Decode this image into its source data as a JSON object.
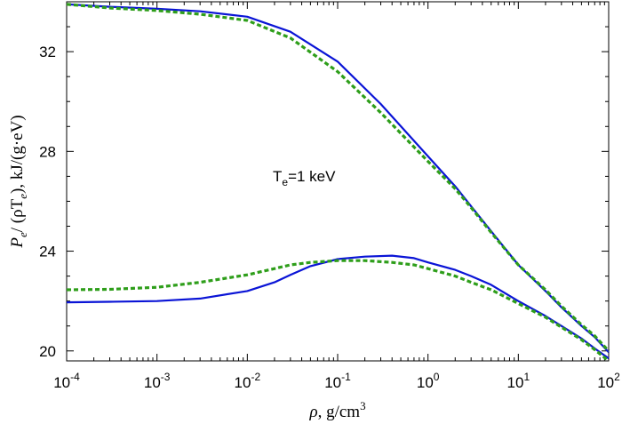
{
  "chart_data": {
    "type": "line",
    "xscale": "log",
    "xlim": [
      0.0001,
      100
    ],
    "ylim": [
      19.6,
      34
    ],
    "xlabel": {
      "symbol": "ρ",
      "text": ", g/cm",
      "sup": "3"
    },
    "ylabel": {
      "pre": "P",
      "sub1": "e",
      "mid": "/ (ρT",
      "sub2": "e",
      "post": "), kJ/(g·eV)"
    },
    "xticks": [
      {
        "value": 0.0001,
        "base": "10",
        "exp": "-4"
      },
      {
        "value": 0.001,
        "base": "10",
        "exp": "-3"
      },
      {
        "value": 0.01,
        "base": "10",
        "exp": "-2"
      },
      {
        "value": 0.1,
        "base": "10",
        "exp": "-1"
      },
      {
        "value": 1,
        "base": "10",
        "exp": "0"
      },
      {
        "value": 10,
        "base": "10",
        "exp": "1"
      },
      {
        "value": 100,
        "base": "10",
        "exp": "2"
      }
    ],
    "yticks": [
      {
        "value": 20,
        "label": "20"
      },
      {
        "value": 24,
        "label": "24"
      },
      {
        "value": 28,
        "label": "28"
      },
      {
        "value": 32,
        "label": "32"
      }
    ],
    "annotation": {
      "base": "T",
      "sub": "e",
      "rest": "=1 keV"
    },
    "series": [
      {
        "color": "#0a14d6",
        "dash": "solid",
        "x": [
          0.0001,
          0.0003,
          0.001,
          0.003,
          0.01,
          0.03,
          0.1,
          0.3,
          1,
          2,
          3,
          5,
          10,
          20,
          30,
          50,
          70,
          100
        ],
        "y": [
          33.9,
          33.8,
          33.72,
          33.62,
          33.4,
          32.8,
          31.6,
          29.9,
          27.8,
          26.6,
          25.8,
          24.8,
          23.45,
          22.4,
          21.75,
          21.0,
          20.55,
          19.95
        ]
      },
      {
        "color": "#2e9e1a",
        "dash": "dashed",
        "x": [
          0.0001,
          0.0003,
          0.001,
          0.003,
          0.01,
          0.03,
          0.1,
          0.3,
          1,
          2,
          3,
          5,
          10,
          20,
          30,
          50,
          70,
          100
        ],
        "y": [
          33.9,
          33.75,
          33.65,
          33.5,
          33.25,
          32.55,
          31.2,
          29.55,
          27.6,
          26.5,
          25.75,
          24.75,
          23.45,
          22.45,
          21.8,
          21.05,
          20.6,
          20.0
        ]
      },
      {
        "color": "#0a14d6",
        "dash": "solid",
        "x": [
          0.0001,
          0.0003,
          0.001,
          0.003,
          0.01,
          0.02,
          0.03,
          0.05,
          0.1,
          0.2,
          0.4,
          0.7,
          1,
          2,
          3,
          5,
          10,
          20,
          30,
          50,
          70,
          100
        ],
        "y": [
          21.95,
          21.97,
          22.0,
          22.1,
          22.4,
          22.75,
          23.05,
          23.4,
          23.68,
          23.78,
          23.82,
          23.72,
          23.55,
          23.25,
          23.0,
          22.65,
          22.0,
          21.4,
          21.0,
          20.5,
          20.1,
          19.7
        ]
      },
      {
        "color": "#2e9e1a",
        "dash": "dashed",
        "x": [
          0.0001,
          0.0003,
          0.001,
          0.003,
          0.01,
          0.02,
          0.03,
          0.05,
          0.1,
          0.2,
          0.4,
          0.7,
          1,
          2,
          3,
          5,
          10,
          20,
          30,
          50,
          70,
          100
        ],
        "y": [
          22.45,
          22.47,
          22.55,
          22.75,
          23.05,
          23.3,
          23.45,
          23.55,
          23.62,
          23.62,
          23.55,
          23.45,
          23.3,
          23.0,
          22.75,
          22.45,
          21.9,
          21.35,
          20.95,
          20.45,
          20.05,
          19.6
        ]
      }
    ]
  }
}
